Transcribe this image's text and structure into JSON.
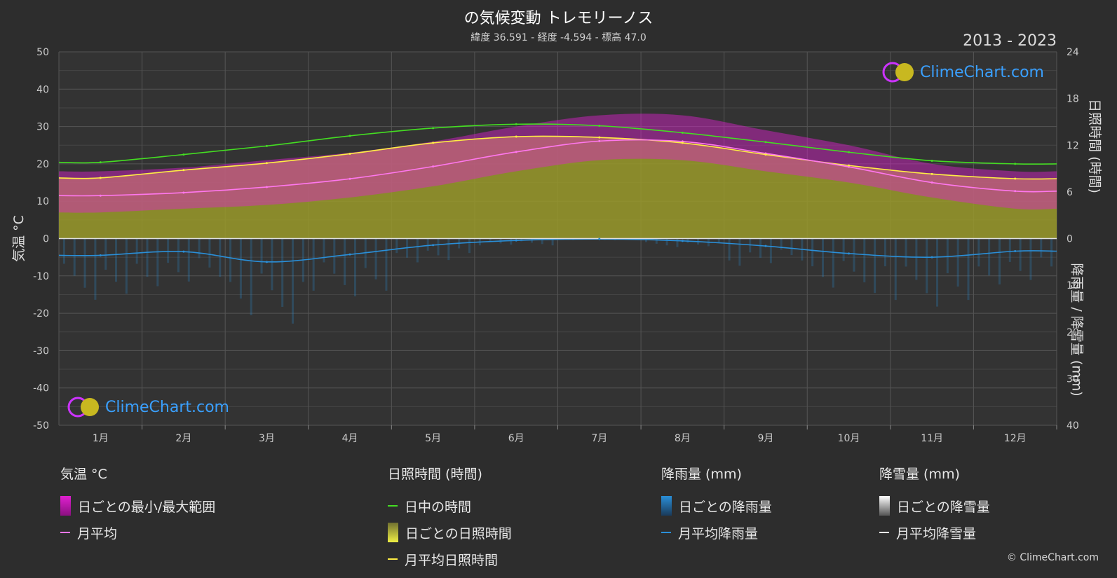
{
  "header": {
    "title": "の気候変動 トレモリーノス",
    "subtitle": "緯度 36.591 - 経度 -4.594 - 標高 47.0",
    "years": "2013 - 2023"
  },
  "axes": {
    "left_title": "気温 °C",
    "right_top_title": "日照時間 (時間)",
    "right_bottom_title": "降雨量 / 降雪量 (mm)"
  },
  "brand": {
    "logo_text": "ClimeChart.com",
    "copyright": "© ClimeChart.com"
  },
  "colors": {
    "background": "#2d2d2d",
    "daylight": "#44dd22",
    "sunshine_avg": "#ffee44",
    "sunshine_fill": "#9a9a2a",
    "temp_range": "#e020d0",
    "temp_avg": "#ff77ee",
    "rain": "#2a8fd8",
    "snow": "#ffffff",
    "grid": "#555555",
    "logo": "#3aa0ff"
  },
  "legend": {
    "temperature": {
      "heading": "気温 °C",
      "items": [
        {
          "label": "日ごとの最小/最大範囲",
          "kind": "box",
          "color": "#e020d0"
        },
        {
          "label": "月平均",
          "kind": "line",
          "color": "#ff77ee"
        }
      ]
    },
    "sunshine": {
      "heading": "日照時間 (時間)",
      "items": [
        {
          "label": "日中の時間",
          "kind": "line",
          "color": "#44dd22"
        },
        {
          "label": "日ごとの日照時間",
          "kind": "box",
          "color": "#d8d840"
        },
        {
          "label": "月平均日照時間",
          "kind": "line",
          "color": "#ffee44"
        }
      ]
    },
    "rain": {
      "heading": "降雨量 (mm)",
      "items": [
        {
          "label": "日ごとの降雨量",
          "kind": "box",
          "color": "#2a8fd8"
        },
        {
          "label": "月平均降雨量",
          "kind": "line",
          "color": "#2a8fd8"
        }
      ]
    },
    "snow": {
      "heading": "降雪量 (mm)",
      "items": [
        {
          "label": "日ごとの降雪量",
          "kind": "box",
          "color": "#dddddd"
        },
        {
          "label": "月平均降雪量",
          "kind": "line",
          "color": "#ffffff"
        }
      ]
    }
  },
  "chart_data": {
    "type": "line",
    "categories": [
      "1月",
      "2月",
      "3月",
      "4月",
      "5月",
      "6月",
      "7月",
      "8月",
      "9月",
      "10月",
      "11月",
      "12月"
    ],
    "y_left": {
      "range": [
        -50,
        50
      ],
      "ticks": [
        50,
        40,
        30,
        20,
        10,
        0,
        -10,
        -20,
        -30,
        -40,
        -50
      ]
    },
    "y_right_sunshine": {
      "range": [
        0,
        24
      ],
      "ticks": [
        24,
        18,
        12,
        6,
        0
      ]
    },
    "y_right_precip": {
      "range": [
        0,
        40
      ],
      "ticks": [
        10,
        20,
        30,
        40
      ]
    },
    "grid": true,
    "series": [
      {
        "name": "日中の時間",
        "axis": "sunshine_hours",
        "values": [
          9.8,
          10.8,
          11.9,
          13.2,
          14.2,
          14.7,
          14.5,
          13.6,
          12.4,
          11.1,
          10.0,
          9.6
        ]
      },
      {
        "name": "月平均日照時間",
        "axis": "sunshine_hours",
        "values": [
          7.8,
          8.8,
          9.7,
          10.9,
          12.3,
          13.1,
          13.0,
          12.3,
          10.8,
          9.4,
          8.3,
          7.7
        ]
      },
      {
        "name": "月平均",
        "axis": "temperature_c",
        "values": [
          11.5,
          12.3,
          13.8,
          16.0,
          19.3,
          23.2,
          26.1,
          26.0,
          22.8,
          19.2,
          15.0,
          12.7
        ]
      },
      {
        "name": "月平均降雨量",
        "axis": "precip_mm",
        "values": [
          3.6,
          2.8,
          5.0,
          3.4,
          1.4,
          0.4,
          0.1,
          0.5,
          1.6,
          3.2,
          4.0,
          2.7
        ]
      },
      {
        "name": "月平均降雪量",
        "axis": "precip_mm",
        "values": [
          0,
          0,
          0,
          0,
          0,
          0,
          0,
          0,
          0,
          0,
          0,
          0
        ]
      }
    ],
    "daily_temp_range": {
      "min": [
        7,
        8,
        9,
        11,
        14,
        18,
        21,
        21,
        18,
        15,
        11,
        8
      ],
      "max": [
        18,
        19,
        21,
        23,
        26,
        30,
        33,
        33,
        29,
        25,
        20,
        18
      ]
    }
  }
}
